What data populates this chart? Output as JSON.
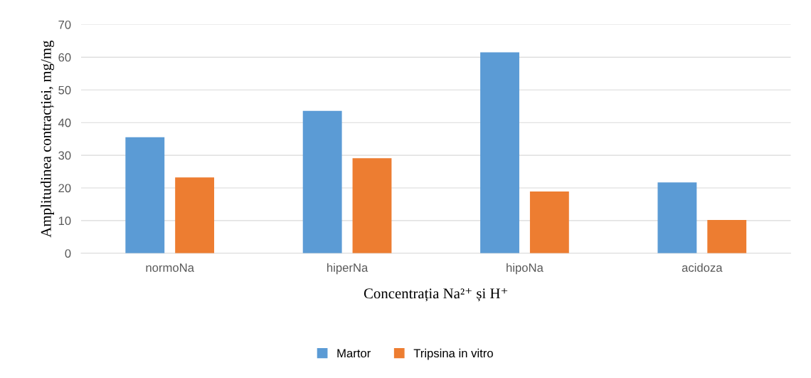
{
  "chart_data": {
    "type": "bar",
    "categories": [
      "normoNa",
      "hiperNa",
      "hipoNa",
      "acidoza"
    ],
    "series": [
      {
        "name": "Martor",
        "color": "#5b9bd5",
        "values": [
          35.5,
          43.6,
          61.5,
          21.7
        ]
      },
      {
        "name": "Tripsina in vitro",
        "color": "#ed7d31",
        "values": [
          23.2,
          29.1,
          18.9,
          10.2
        ]
      }
    ],
    "xlabel": "Concentrația Na²⁺ și H⁺",
    "ylabel": "Amplitudinea contracției, mg/mg",
    "ylim": [
      0,
      70
    ],
    "yticks": [
      0,
      10,
      20,
      30,
      40,
      50,
      60,
      70
    ],
    "grid": "y",
    "legend": "bottom"
  }
}
